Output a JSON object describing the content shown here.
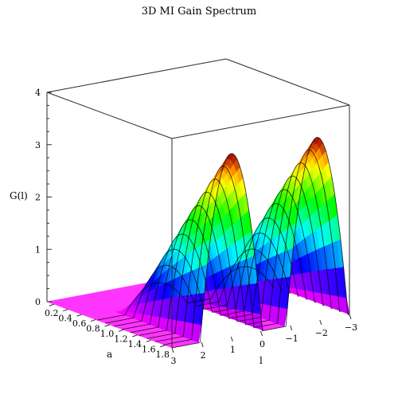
{
  "chart_data": {
    "type": "surface",
    "title": "3D MI Gain Spectrum",
    "xlabel": "a",
    "ylabel": "l",
    "zlabel": "G(l)",
    "xlim": [
      0.1,
      1.9
    ],
    "ylim": [
      -3,
      3
    ],
    "zlim": [
      0,
      4
    ],
    "x_ticks": [
      "0.2",
      "0.4",
      "0.6",
      "0.8",
      "1.0",
      "1.2",
      "1.4",
      "1.6",
      "1.8"
    ],
    "y_ticks": [
      "3",
      "2",
      "1",
      "0",
      "−1",
      "−2",
      "−3"
    ],
    "z_ticks": [
      "0",
      "1",
      "2",
      "3",
      "4"
    ],
    "a_threshold": 0.7,
    "peak_gain": 3.5,
    "peaks_at": [
      1.0,
      -1.9
    ],
    "colormap": "hsv",
    "floor_color": "#ff33ff"
  }
}
